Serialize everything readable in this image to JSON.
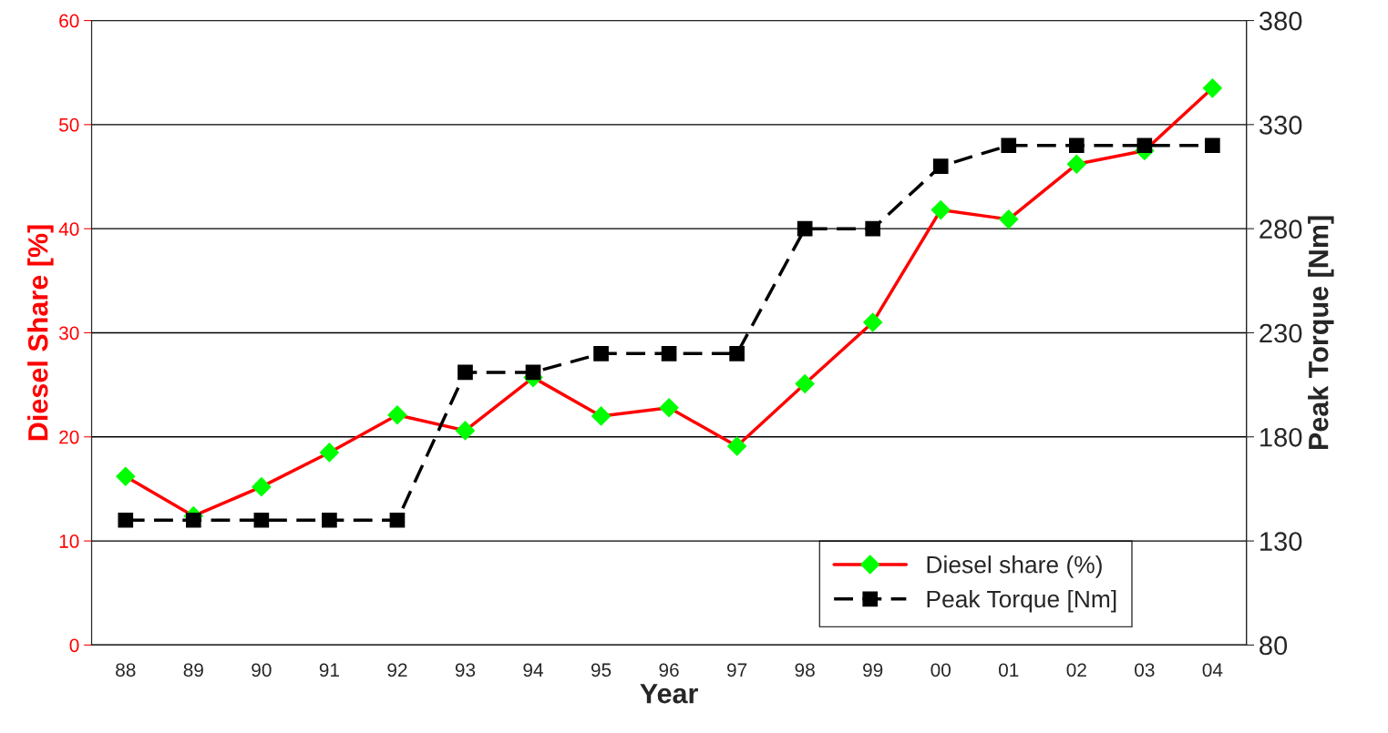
{
  "chart_data": {
    "type": "line",
    "xlabel": "Year",
    "ylabel": "Diesel Share [%]",
    "y2label": "Peak Torque [Nm]",
    "categories": [
      "88",
      "89",
      "90",
      "91",
      "92",
      "93",
      "94",
      "95",
      "96",
      "97",
      "98",
      "99",
      "00",
      "01",
      "02",
      "03",
      "04"
    ],
    "series": [
      {
        "name": "Diesel share (%)",
        "color": "#ff0000",
        "marker": "diamond",
        "line_style": "solid",
        "values": [
          16.2,
          12.4,
          15.2,
          18.5,
          22.1,
          20.6,
          25.7,
          22.0,
          22.8,
          19.1,
          25.1,
          31.0,
          41.8,
          40.9,
          46.2,
          47.5,
          53.5
        ]
      },
      {
        "name": "Peak Torque [Nm]",
        "color": "#000000",
        "marker": "square",
        "line_style": "dashed",
        "axis": "y2",
        "values": [
          140,
          140,
          140,
          140,
          140,
          211,
          211,
          220,
          220,
          220,
          280,
          280,
          310,
          320,
          320,
          320,
          320
        ]
      }
    ],
    "ylim": [
      0,
      60
    ],
    "yticks": [
      0,
      10,
      20,
      30,
      40,
      50,
      60
    ],
    "y2lim": [
      80,
      380
    ],
    "y2ticks": [
      80,
      130,
      180,
      230,
      280,
      330,
      380
    ],
    "grid": "y",
    "legend": "bottom right"
  }
}
